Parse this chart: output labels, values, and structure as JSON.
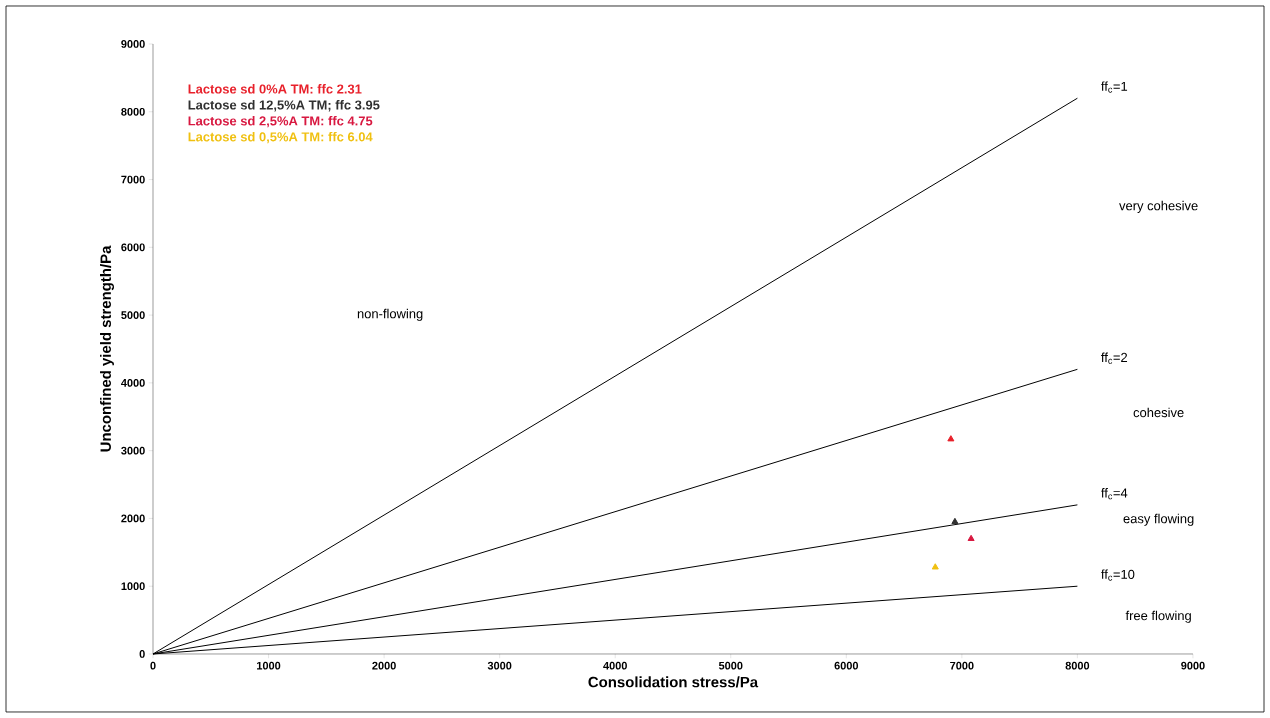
{
  "chart_data": {
    "type": "scatter",
    "xlabel": "Consolidation stress/Pa",
    "ylabel": "Unconfined yield strength/Pa",
    "xlim": [
      0,
      9000
    ],
    "ylim": [
      0,
      9000
    ],
    "xticks": [
      0,
      1000,
      2000,
      3000,
      4000,
      5000,
      6000,
      7000,
      8000,
      9000
    ],
    "yticks": [
      0,
      1000,
      2000,
      3000,
      4000,
      5000,
      6000,
      7000,
      8000,
      9000
    ],
    "grid": false,
    "legend": "top left",
    "marker": "triangle",
    "series": [
      {
        "name": "Lactose sd 0%A TM: ffc 2.31",
        "color": "#e8202a",
        "x": [
          6905
        ],
        "values": [
          3170
        ]
      },
      {
        "name": "Lactose sd 12,5%A TM; ffc 3.95",
        "color": "#303030",
        "x": [
          6940
        ],
        "values": [
          1950
        ]
      },
      {
        "name": "Lactose sd 2,5%A TM: ffc 4.75",
        "color": "#d81840",
        "x": [
          7080
        ],
        "values": [
          1700
        ]
      },
      {
        "name": "Lactose sd 0,5%A TM: ffc 6.04",
        "color": "#f0c010",
        "x": [
          6770
        ],
        "values": [
          1280
        ]
      },
      {
        "type": "line",
        "name": "ff$_{c}$=1",
        "color": "#000000",
        "marker": "none",
        "x": [
          0,
          8000
        ],
        "values": [
          0,
          8200
        ]
      },
      {
        "type": "line",
        "name": "ff$_{c}$=2",
        "color": "#000000",
        "marker": "none",
        "x": [
          0,
          8000
        ],
        "values": [
          0,
          4200
        ]
      },
      {
        "type": "line",
        "name": "ff$_{c}$=4",
        "color": "#000000",
        "marker": "none",
        "x": [
          0,
          8000
        ],
        "values": [
          0,
          2200
        ]
      },
      {
        "type": "line",
        "name": "ff$_{c}$=10",
        "color": "#000000",
        "marker": "none",
        "x": [
          0,
          8000
        ],
        "values": [
          0,
          1000
        ]
      }
    ],
    "annotations": [
      "non-flowing",
      "very cohesive",
      "cohesive",
      "easy flowing",
      "free flowing"
    ]
  }
}
